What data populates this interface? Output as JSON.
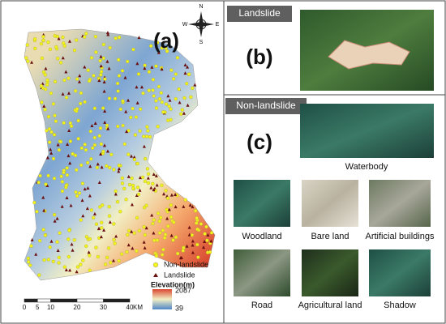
{
  "panels": {
    "a": "(a)",
    "b": "(b)",
    "c": "(c)"
  },
  "compass": {
    "n": "N",
    "s": "S",
    "e": "E",
    "w": "W"
  },
  "legend": {
    "non_landslide": "Non-landslide",
    "landslide": "Landslide",
    "elevation_title": "Elevation(m)",
    "elevation_max": 2087,
    "elevation_min": 39
  },
  "scale": {
    "ticks": [
      0,
      5,
      10,
      20,
      30,
      40
    ],
    "unit": "KM"
  },
  "landslide_section": {
    "header": "Landslide"
  },
  "non_landslide_section": {
    "header": "Non-landslide",
    "samples": [
      "Waterbody",
      "Woodland",
      "Bare land",
      "Artificial buildings",
      "Road",
      "Agricultural land",
      "Shadow"
    ]
  }
}
